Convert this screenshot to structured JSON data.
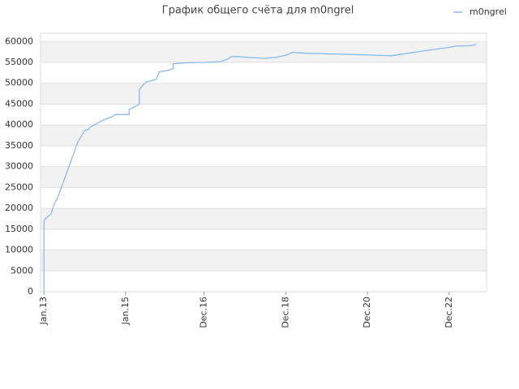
{
  "chart_data": {
    "type": "line",
    "title": "График общего счёта для m0ngrel",
    "x": [
      "2013-01",
      "2013-01",
      "2013-02",
      "2013-03",
      "2013-04",
      "2013-05",
      "2013-07",
      "2013-09",
      "2013-11",
      "2014-01",
      "2014-02",
      "2014-03",
      "2014-06",
      "2014-09",
      "2014-10",
      "2014-12",
      "2015-02",
      "2015-02",
      "2015-04",
      "2015-05",
      "2015-05",
      "2015-06",
      "2015-07",
      "2015-09",
      "2015-10",
      "2015-11",
      "2016-01",
      "2016-03",
      "2016-03",
      "2016-07",
      "2016-12",
      "2017-05",
      "2017-07",
      "2017-08",
      "2017-10",
      "2018-01",
      "2018-06",
      "2018-09",
      "2018-12",
      "2019-02",
      "2019-06",
      "2020-03",
      "2020-12",
      "2021-07",
      "2022-04",
      "2022-12",
      "2023-02",
      "2023-06",
      "2023-08"
    ],
    "series": [
      {
        "name": "m0ngrel",
        "color": "#88bbee",
        "values": [
          0,
          17000,
          18000,
          18500,
          21000,
          22500,
          27000,
          31500,
          36000,
          38700,
          38900,
          39700,
          41000,
          42000,
          42500,
          42500,
          42500,
          43700,
          44500,
          45000,
          48500,
          49500,
          50300,
          50700,
          51000,
          52800,
          53000,
          53500,
          54700,
          54900,
          55000,
          55200,
          55800,
          56400,
          56400,
          56200,
          56000,
          56200,
          56700,
          57400,
          57200,
          57000,
          56800,
          56600,
          57700,
          58600,
          58900,
          59000,
          59300
        ]
      }
    ],
    "xlim": [
      "2012-12",
      "2023-11"
    ],
    "xticks": [
      {
        "value": "2013-01",
        "label": "Jan.13"
      },
      {
        "value": "2015-01",
        "label": "Jan.15"
      },
      {
        "value": "2016-12",
        "label": "Dec.16"
      },
      {
        "value": "2018-12",
        "label": "Dec.18"
      },
      {
        "value": "2020-12",
        "label": "Dec.20"
      },
      {
        "value": "2022-12",
        "label": "Dec.22"
      }
    ],
    "ylim": [
      0,
      62000
    ],
    "yticks": [
      0,
      5000,
      10000,
      15000,
      20000,
      25000,
      30000,
      35000,
      40000,
      45000,
      50000,
      55000,
      60000
    ],
    "grid": true
  }
}
